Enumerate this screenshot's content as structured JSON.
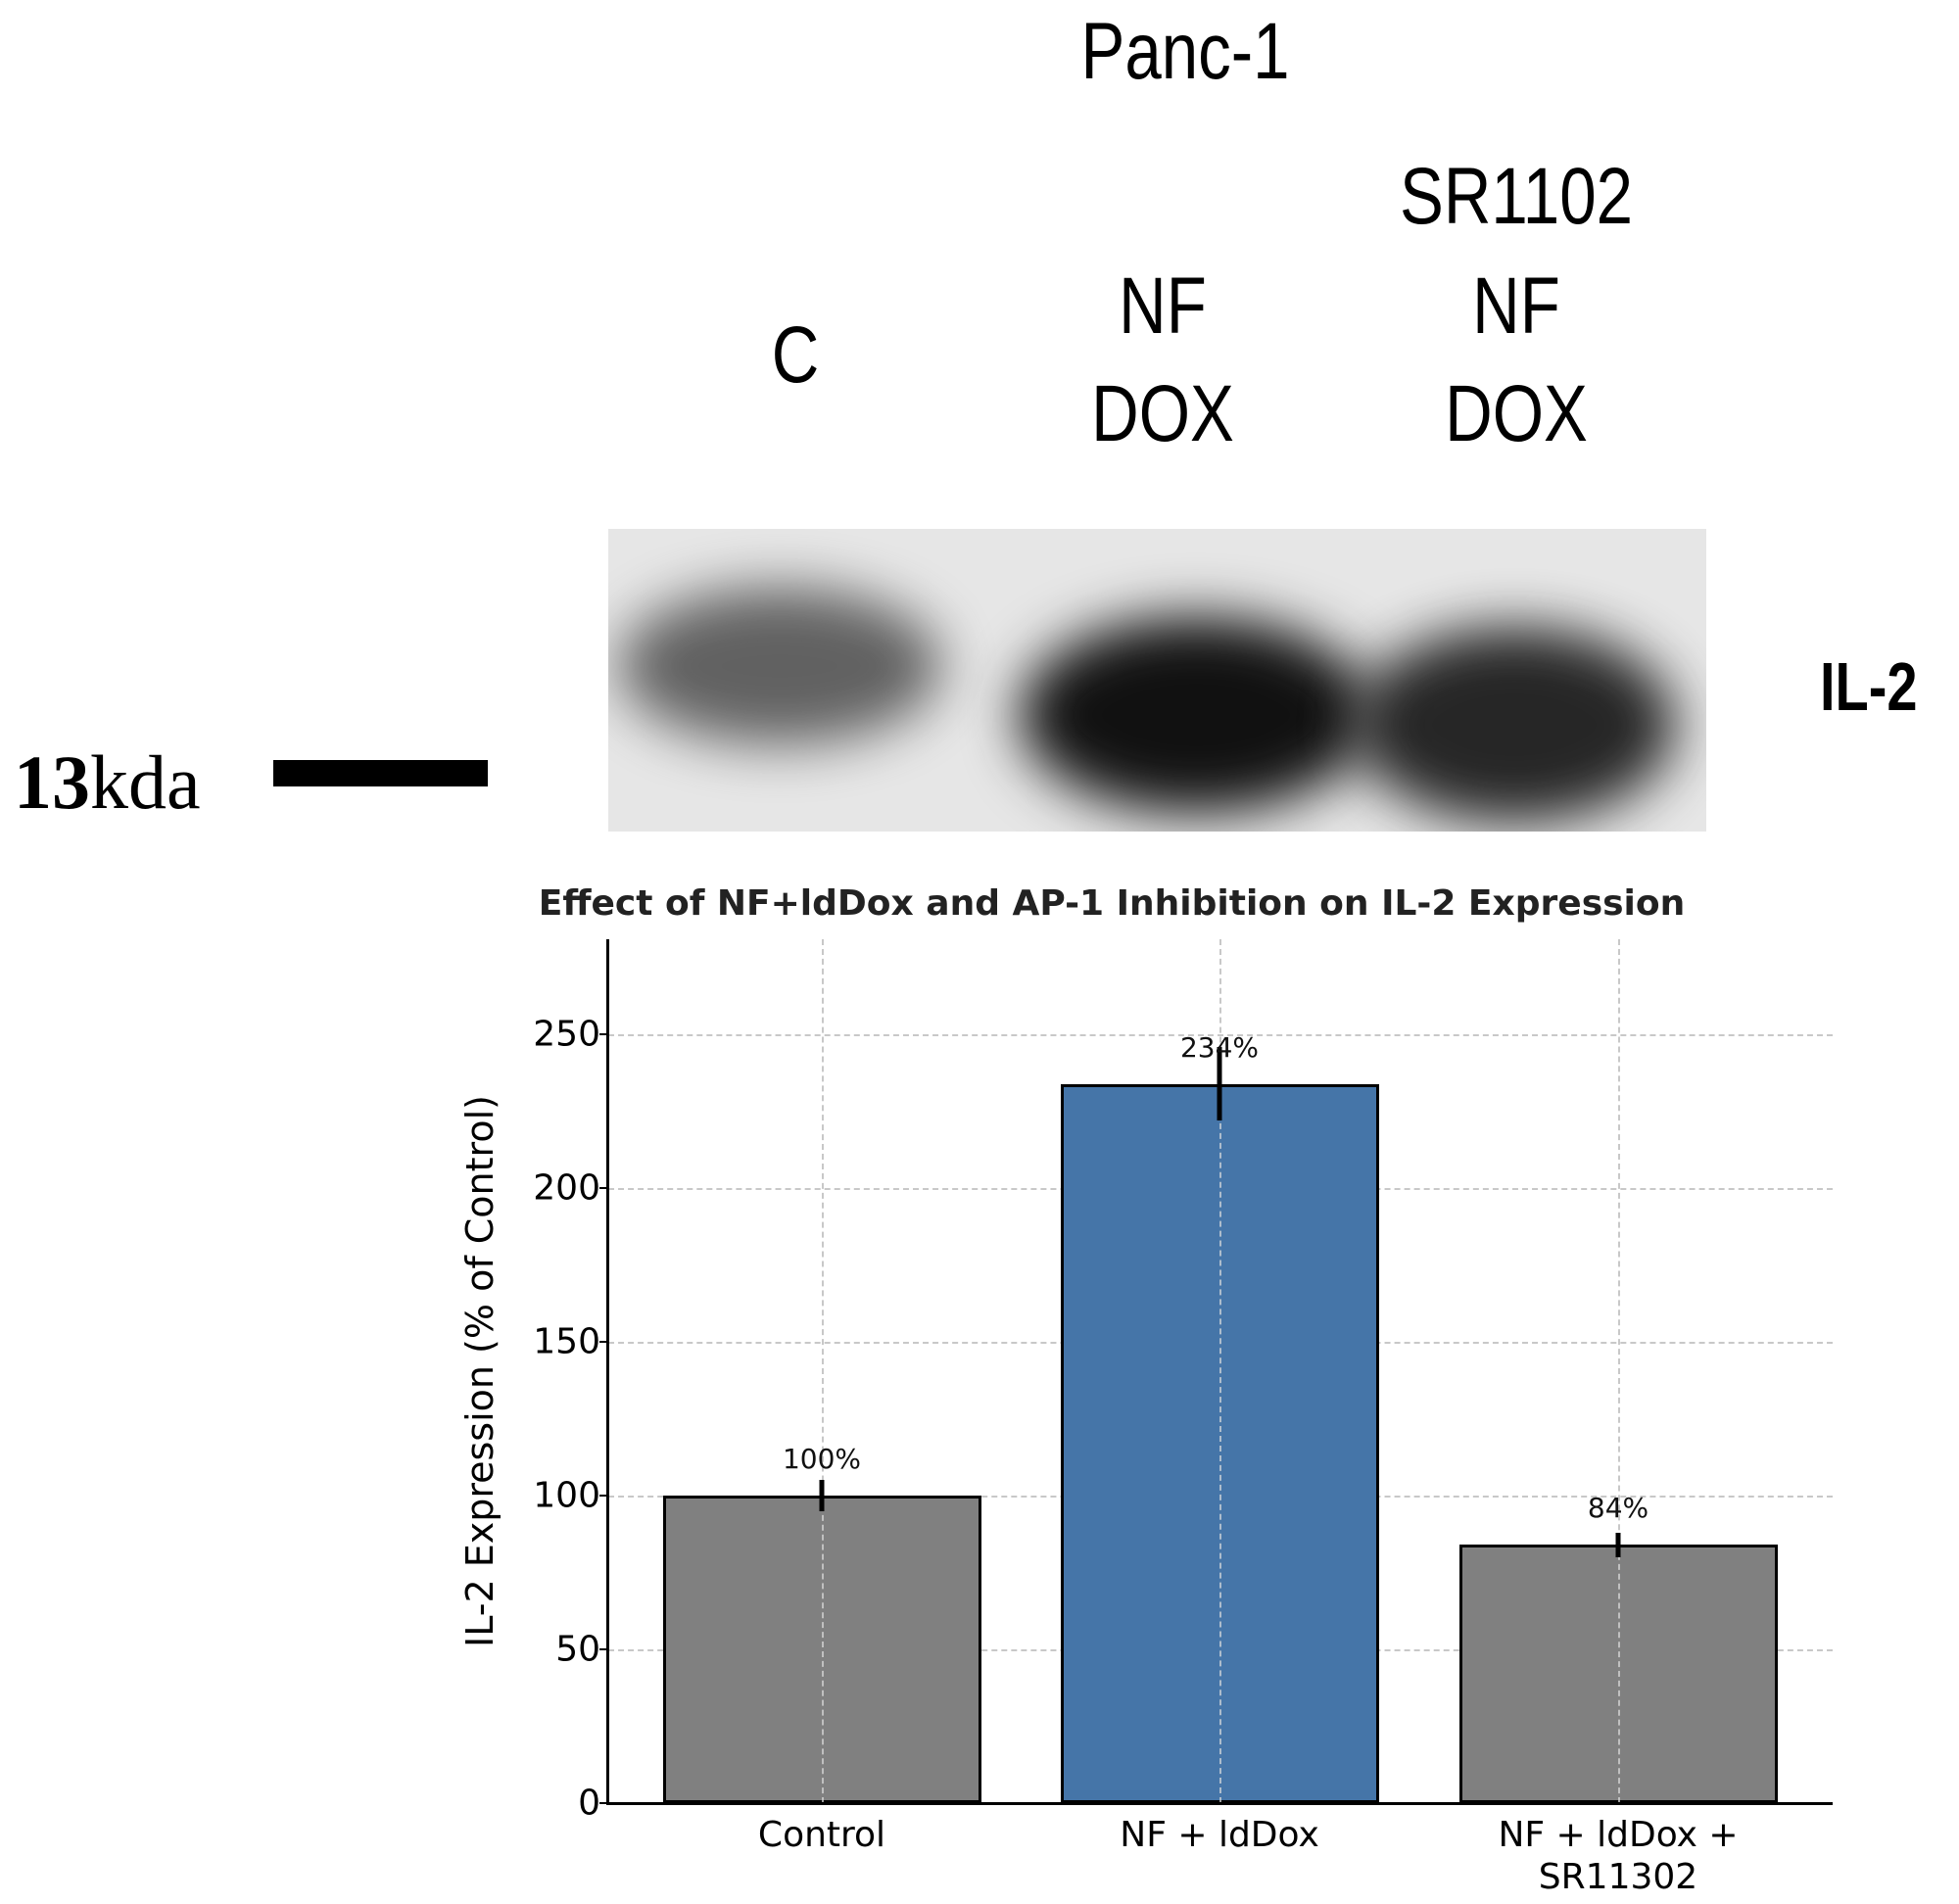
{
  "figure": {
    "cell_line": "Panc-1",
    "lanes": [
      {
        "label_lines": [
          "C"
        ]
      },
      {
        "label_lines": [
          "NF",
          "DOX"
        ]
      },
      {
        "label_lines": [
          "SR1102",
          "NF",
          "DOX"
        ]
      }
    ],
    "blot": {
      "protein_label": "IL-2",
      "marker_number": "13",
      "marker_unit": "kda"
    }
  },
  "chart_data": {
    "type": "bar",
    "title": "Effect of NF+ldDox and AP-1 Inhibition on IL-2 Expression",
    "xlabel": "",
    "ylabel": "IL-2 Expression (% of Control)",
    "categories": [
      "Control",
      "NF + ldDox",
      "NF + ldDox + SR11302"
    ],
    "category_lines": [
      [
        "Control"
      ],
      [
        "NF + ldDox"
      ],
      [
        "NF + ldDox +",
        "SR11302"
      ]
    ],
    "values": [
      100,
      234,
      84
    ],
    "errors": [
      5,
      12,
      4
    ],
    "value_labels": [
      "100%",
      "234%",
      "84%"
    ],
    "colors": [
      "#808080",
      "#4575a8",
      "#808080"
    ],
    "ylim": [
      0,
      281
    ],
    "yticks": [
      0,
      50,
      100,
      150,
      200,
      250
    ],
    "grid": true,
    "legend": null
  }
}
